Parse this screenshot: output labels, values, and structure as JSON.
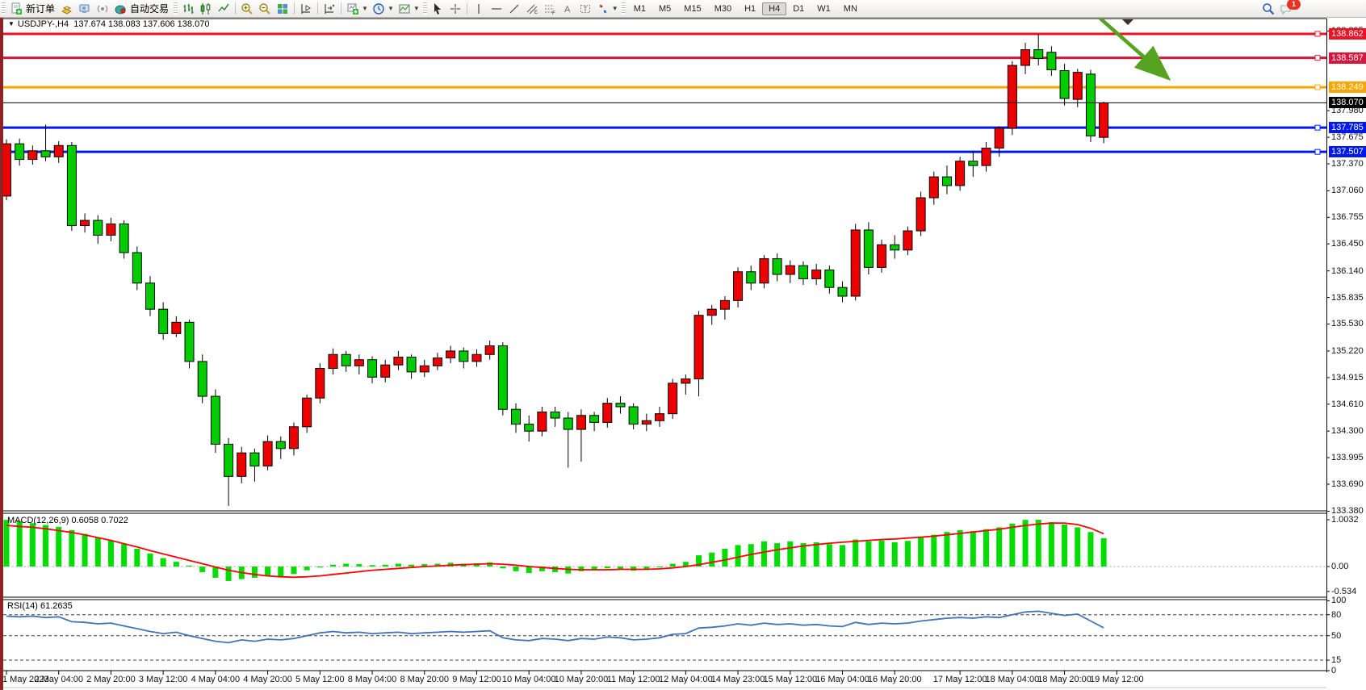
{
  "toolbar": {
    "new_order_label": "新订单",
    "autotrade_label": "自动交易",
    "timeframes": [
      {
        "label": "M1",
        "active": false
      },
      {
        "label": "M5",
        "active": false
      },
      {
        "label": "M15",
        "active": false
      },
      {
        "label": "M30",
        "active": false
      },
      {
        "label": "H1",
        "active": false
      },
      {
        "label": "H4",
        "active": true
      },
      {
        "label": "D1",
        "active": false
      },
      {
        "label": "W1",
        "active": false
      },
      {
        "label": "MN",
        "active": false
      }
    ],
    "notification_count": "1"
  },
  "chart": {
    "title_symbol": "USDJPY-,H4",
    "ohlc_text": "137.674 138.083 137.606 138.070",
    "current_price": "138.070",
    "y_ticks": [
      "138.895",
      "137.980",
      "137.675",
      "137.370",
      "137.060",
      "136.755",
      "136.450",
      "136.140",
      "135.835",
      "135.530",
      "135.220",
      "134.915",
      "134.610",
      "134.300",
      "133.995",
      "133.690",
      "133.380"
    ],
    "hlines": [
      {
        "price": 138.862,
        "label": "138.862",
        "color": "#ee1123"
      },
      {
        "price": 138.587,
        "label": "138.587",
        "color": "#d5173c"
      },
      {
        "price": 138.249,
        "label": "138.249",
        "color": "#ffa500"
      },
      {
        "price": 137.785,
        "label": "137.785",
        "color": "#0018ee"
      },
      {
        "price": 137.507,
        "label": "137.507",
        "color": "#0018ee"
      }
    ]
  },
  "macd_pane": {
    "label": "MACD(12,26,9) 0.6058 0.7022",
    "ticks": [
      "1.0032",
      "0.00",
      "-0.534"
    ],
    "tick_values": [
      1.0032,
      0,
      -0.534
    ]
  },
  "rsi_pane": {
    "label": "RSI(14) 61.2635",
    "ticks": [
      "100",
      "80",
      "50",
      "15",
      "0"
    ],
    "tick_values": [
      100,
      80,
      50,
      15,
      0
    ],
    "levels": [
      80,
      50,
      15
    ]
  },
  "x_axis": {
    "labels": [
      "1 May 2023",
      "2 May 04:00",
      "2 May 20:00",
      "3 May 12:00",
      "4 May 04:00",
      "4 May 20:00",
      "5 May 12:00",
      "8 May 04:00",
      "8 May 20:00",
      "9 May 12:00",
      "10 May 04:00",
      "10 May 20:00",
      "11 May 12:00",
      "12 May 04:00",
      "14 May 23:00",
      "15 May 12:00",
      "16 May 04:00",
      "16 May 20:00",
      "17 May 12:00",
      "18 May 04:00",
      "18 May 20:00",
      "19 May 12:00"
    ],
    "bar_indices": [
      0,
      4,
      8,
      12,
      16,
      20,
      24,
      28,
      32,
      36,
      40,
      44,
      48,
      52,
      56,
      60,
      64,
      68,
      73,
      77,
      81,
      85
    ]
  },
  "chart_data": {
    "type": "candlestick",
    "symbol": "USDJPY",
    "timeframe": "H4",
    "up_color": "#ee0000",
    "down_color": "#00cc00",
    "macd_bar_color": "#00dd00",
    "macd_signal_color": "#ff0000",
    "rsi_line_color": "#4273b9",
    "arrow_color": "#55a31f",
    "candles": [
      [
        137.0,
        137.65,
        136.95,
        137.6
      ],
      [
        137.6,
        137.66,
        137.35,
        137.42
      ],
      [
        137.42,
        137.58,
        137.36,
        137.52
      ],
      [
        137.52,
        137.82,
        137.4,
        137.45
      ],
      [
        137.45,
        137.63,
        137.38,
        137.58
      ],
      [
        137.58,
        137.62,
        136.6,
        136.66
      ],
      [
        136.66,
        136.8,
        136.58,
        136.72
      ],
      [
        136.72,
        136.78,
        136.45,
        136.55
      ],
      [
        136.55,
        136.75,
        136.48,
        136.68
      ],
      [
        136.68,
        136.72,
        136.28,
        136.35
      ],
      [
        136.35,
        136.42,
        135.92,
        136.0
      ],
      [
        136.0,
        136.08,
        135.62,
        135.7
      ],
      [
        135.7,
        135.78,
        135.35,
        135.42
      ],
      [
        135.42,
        135.62,
        135.38,
        135.55
      ],
      [
        135.55,
        135.58,
        135.02,
        135.1
      ],
      [
        135.1,
        135.18,
        134.62,
        134.7
      ],
      [
        134.7,
        134.78,
        134.05,
        134.15
      ],
      [
        134.15,
        134.22,
        133.44,
        133.78
      ],
      [
        133.78,
        134.12,
        133.7,
        134.05
      ],
      [
        134.05,
        134.1,
        133.72,
        133.9
      ],
      [
        133.9,
        134.25,
        133.85,
        134.18
      ],
      [
        134.18,
        134.24,
        133.98,
        134.1
      ],
      [
        134.1,
        134.4,
        134.02,
        134.35
      ],
      [
        134.35,
        134.72,
        134.28,
        134.68
      ],
      [
        134.68,
        135.08,
        134.62,
        135.02
      ],
      [
        135.02,
        135.25,
        134.95,
        135.18
      ],
      [
        135.18,
        135.22,
        134.98,
        135.05
      ],
      [
        135.05,
        135.18,
        134.95,
        135.12
      ],
      [
        135.12,
        135.16,
        134.85,
        134.92
      ],
      [
        134.92,
        135.12,
        134.86,
        135.06
      ],
      [
        135.06,
        135.22,
        135.0,
        135.15
      ],
      [
        135.15,
        135.18,
        134.9,
        134.98
      ],
      [
        134.98,
        135.12,
        134.92,
        135.05
      ],
      [
        135.05,
        135.2,
        135.0,
        135.14
      ],
      [
        135.14,
        135.28,
        135.08,
        135.22
      ],
      [
        135.22,
        135.26,
        135.02,
        135.1
      ],
      [
        135.1,
        135.24,
        135.04,
        135.18
      ],
      [
        135.18,
        135.34,
        135.12,
        135.28
      ],
      [
        135.28,
        135.32,
        134.48,
        134.55
      ],
      [
        134.55,
        134.62,
        134.28,
        134.38
      ],
      [
        134.38,
        134.48,
        134.18,
        134.3
      ],
      [
        134.3,
        134.58,
        134.24,
        134.52
      ],
      [
        134.52,
        134.58,
        134.35,
        134.45
      ],
      [
        134.45,
        134.52,
        133.88,
        134.32
      ],
      [
        134.32,
        134.55,
        133.95,
        134.48
      ],
      [
        134.48,
        134.52,
        134.3,
        134.4
      ],
      [
        134.4,
        134.68,
        134.34,
        134.62
      ],
      [
        134.62,
        134.7,
        134.5,
        134.58
      ],
      [
        134.58,
        134.62,
        134.32,
        134.38
      ],
      [
        134.38,
        134.5,
        134.3,
        134.42
      ],
      [
        134.42,
        134.58,
        134.35,
        134.5
      ],
      [
        134.5,
        134.9,
        134.44,
        134.85
      ],
      [
        134.85,
        134.95,
        134.72,
        134.9
      ],
      [
        134.9,
        135.68,
        134.7,
        135.63
      ],
      [
        135.63,
        135.75,
        135.52,
        135.7
      ],
      [
        135.7,
        135.85,
        135.58,
        135.8
      ],
      [
        135.8,
        136.18,
        135.72,
        136.13
      ],
      [
        136.13,
        136.2,
        135.92,
        136.0
      ],
      [
        136.0,
        136.32,
        135.94,
        136.28
      ],
      [
        136.28,
        136.34,
        136.02,
        136.1
      ],
      [
        136.1,
        136.26,
        136.0,
        136.2
      ],
      [
        136.2,
        136.25,
        135.98,
        136.05
      ],
      [
        136.05,
        136.22,
        135.98,
        136.15
      ],
      [
        136.15,
        136.2,
        135.88,
        135.95
      ],
      [
        135.95,
        136.02,
        135.78,
        135.85
      ],
      [
        135.85,
        136.68,
        135.8,
        136.61
      ],
      [
        136.61,
        136.7,
        136.1,
        136.18
      ],
      [
        136.18,
        136.5,
        136.12,
        136.44
      ],
      [
        136.44,
        136.55,
        136.28,
        136.38
      ],
      [
        136.38,
        136.65,
        136.32,
        136.6
      ],
      [
        136.6,
        137.05,
        136.54,
        136.98
      ],
      [
        136.98,
        137.28,
        136.9,
        137.22
      ],
      [
        137.22,
        137.35,
        137.02,
        137.12
      ],
      [
        137.12,
        137.45,
        137.06,
        137.4
      ],
      [
        137.4,
        137.52,
        137.22,
        137.35
      ],
      [
        137.35,
        137.62,
        137.28,
        137.55
      ],
      [
        137.55,
        137.8,
        137.45,
        137.78
      ],
      [
        137.78,
        138.55,
        137.7,
        138.5
      ],
      [
        138.5,
        138.76,
        138.4,
        138.68
      ],
      [
        138.68,
        138.86,
        138.5,
        138.58
      ],
      [
        138.65,
        138.72,
        138.38,
        138.45
      ],
      [
        138.44,
        138.52,
        138.04,
        138.12
      ],
      [
        138.11,
        138.46,
        138.02,
        138.42
      ],
      [
        138.4,
        138.45,
        137.62,
        137.69
      ],
      [
        137.674,
        138.083,
        137.606,
        138.07
      ]
    ],
    "macd": {
      "histogram": [
        1.0,
        0.97,
        0.93,
        0.89,
        0.85,
        0.78,
        0.7,
        0.63,
        0.56,
        0.48,
        0.38,
        0.28,
        0.18,
        0.1,
        0.02,
        -0.12,
        -0.24,
        -0.31,
        -0.27,
        -0.24,
        -0.2,
        -0.22,
        -0.16,
        -0.08,
        -0.02,
        0.04,
        0.06,
        0.05,
        0.03,
        0.04,
        0.06,
        0.04,
        0.05,
        0.06,
        0.08,
        0.06,
        0.07,
        0.09,
        -0.04,
        -0.1,
        -0.14,
        -0.1,
        -0.12,
        -0.15,
        -0.1,
        -0.08,
        -0.04,
        -0.05,
        -0.09,
        -0.07,
        -0.02,
        0.06,
        0.1,
        0.24,
        0.3,
        0.38,
        0.46,
        0.48,
        0.54,
        0.5,
        0.54,
        0.5,
        0.52,
        0.48,
        0.46,
        0.58,
        0.54,
        0.56,
        0.52,
        0.55,
        0.62,
        0.68,
        0.74,
        0.78,
        0.76,
        0.8,
        0.84,
        0.92,
        1.0,
        1.0032,
        0.95,
        0.9,
        0.84,
        0.74,
        0.6058
      ],
      "signal": [
        0.88,
        0.86,
        0.84,
        0.81,
        0.77,
        0.73,
        0.68,
        0.62,
        0.56,
        0.49,
        0.42,
        0.34,
        0.27,
        0.2,
        0.13,
        0.06,
        -0.01,
        -0.08,
        -0.13,
        -0.17,
        -0.2,
        -0.22,
        -0.23,
        -0.22,
        -0.2,
        -0.17,
        -0.14,
        -0.11,
        -0.08,
        -0.06,
        -0.04,
        -0.02,
        0.0,
        0.01,
        0.03,
        0.04,
        0.05,
        0.06,
        0.05,
        0.03,
        0.0,
        -0.02,
        -0.04,
        -0.06,
        -0.07,
        -0.07,
        -0.07,
        -0.06,
        -0.06,
        -0.06,
        -0.05,
        -0.03,
        0.0,
        0.04,
        0.09,
        0.14,
        0.2,
        0.26,
        0.31,
        0.36,
        0.4,
        0.44,
        0.47,
        0.5,
        0.52,
        0.54,
        0.56,
        0.58,
        0.59,
        0.61,
        0.63,
        0.65,
        0.68,
        0.71,
        0.74,
        0.77,
        0.8,
        0.84,
        0.88,
        0.91,
        0.93,
        0.93,
        0.9,
        0.82,
        0.7022
      ]
    },
    "rsi_values": [
      78,
      77,
      78,
      76,
      77,
      70,
      69,
      67,
      68,
      64,
      60,
      56,
      53,
      55,
      50,
      46,
      42,
      40,
      44,
      42,
      45,
      44,
      46,
      50,
      54,
      56,
      54,
      55,
      53,
      54,
      55,
      53,
      54,
      55,
      56,
      55,
      56,
      57,
      47,
      44,
      43,
      46,
      45,
      43,
      46,
      45,
      48,
      47,
      44,
      45,
      47,
      52,
      53,
      61,
      62,
      64,
      67,
      65,
      68,
      66,
      67,
      65,
      66,
      64,
      63,
      69,
      66,
      68,
      67,
      68,
      71,
      73,
      75,
      76,
      75,
      77,
      76,
      80,
      84,
      85,
      82,
      79,
      81,
      71,
      61.26
    ],
    "annotations": {
      "green_arrow": {
        "from": [
          1363,
          23
        ],
        "to": [
          1447,
          97
        ]
      },
      "shift_marker_x": 1397
    }
  }
}
